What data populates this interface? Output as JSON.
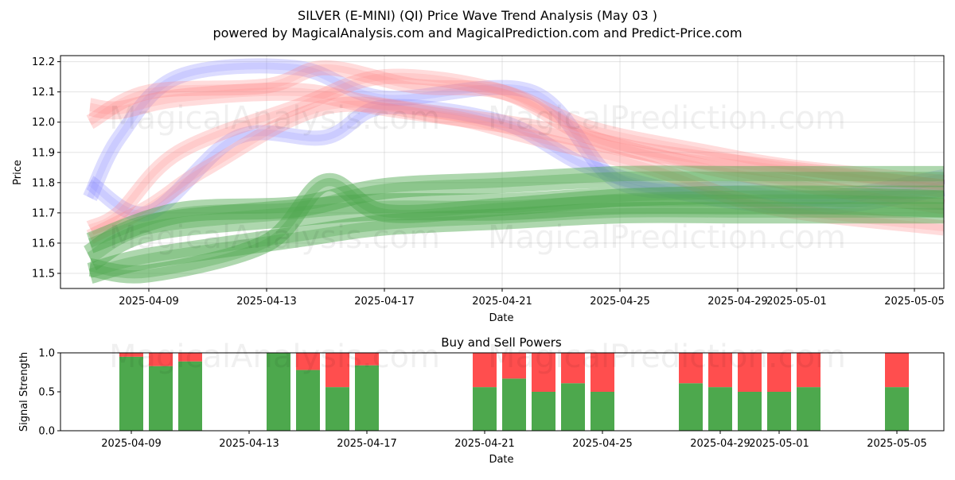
{
  "title_line1": "SILVER (E-MINI) (QI) Price Wave Trend Analysis (May 03 )",
  "title_line2": "powered by MagicalAnalysis.com and MagicalPrediction.com and Predict-Price.com",
  "watermarks": [
    "MagicalAnalysis.com",
    "MagicalPrediction.com"
  ],
  "colors": {
    "buy": "#3a9e3a",
    "sell": "#ff4444",
    "wave_red": "#ff8080",
    "wave_blue": "#8080ff",
    "wave_green": "#4ca64c"
  },
  "chart_data": [
    {
      "type": "area",
      "title": "",
      "xlabel": "Date",
      "ylabel": "Price",
      "xlim": [
        "2025-04-06",
        "2025-05-06"
      ],
      "ylim": [
        11.45,
        12.22
      ],
      "x_ticks": [
        "2025-04-09",
        "2025-04-13",
        "2025-04-17",
        "2025-04-21",
        "2025-04-25",
        "2025-04-29",
        "2025-05-01",
        "2025-05-05"
      ],
      "y_ticks": [
        "11.5",
        "11.6",
        "11.7",
        "11.8",
        "11.9",
        "12.0",
        "12.1",
        "12.2"
      ],
      "grid": true,
      "series": [
        {
          "color": "red",
          "x": [
            "2025-04-07",
            "2025-04-08",
            "2025-04-10",
            "2025-04-14",
            "2025-04-17",
            "2025-04-22",
            "2025-04-26",
            "2025-04-30",
            "2025-05-06"
          ],
          "values": [
            12.05,
            12.04,
            12.08,
            12.1,
            12.05,
            11.98,
            11.9,
            11.85,
            11.78
          ],
          "width": 0.06
        },
        {
          "color": "red",
          "x": [
            "2025-04-07",
            "2025-04-09",
            "2025-04-13",
            "2025-04-15",
            "2025-04-18",
            "2025-04-21",
            "2025-04-24",
            "2025-04-28",
            "2025-05-01",
            "2025-05-06"
          ],
          "values": [
            12.0,
            12.1,
            12.12,
            12.18,
            12.12,
            12.1,
            11.98,
            11.9,
            11.85,
            11.8
          ],
          "width": 0.05
        },
        {
          "color": "red",
          "x": [
            "2025-04-07",
            "2025-04-08",
            "2025-04-10",
            "2025-04-14",
            "2025-04-17",
            "2025-04-21",
            "2025-04-24",
            "2025-04-28",
            "2025-05-02",
            "2025-05-06"
          ],
          "values": [
            11.65,
            11.7,
            11.9,
            12.05,
            12.15,
            12.1,
            11.95,
            11.85,
            11.78,
            11.72
          ],
          "width": 0.05
        },
        {
          "color": "red",
          "x": [
            "2025-04-07",
            "2025-04-09",
            "2025-04-11",
            "2025-04-15",
            "2025-04-19",
            "2025-04-22",
            "2025-04-26",
            "2025-04-30",
            "2025-05-06"
          ],
          "values": [
            11.62,
            11.72,
            11.85,
            12.05,
            12.02,
            11.95,
            11.85,
            11.72,
            11.65
          ],
          "width": 0.05
        },
        {
          "color": "blue",
          "x": [
            "2025-04-07",
            "2025-04-08",
            "2025-04-10",
            "2025-04-14",
            "2025-04-17",
            "2025-04-22",
            "2025-04-25",
            "2025-04-29",
            "2025-05-02",
            "2025-05-06"
          ],
          "values": [
            11.75,
            11.95,
            12.15,
            12.18,
            12.08,
            12.1,
            11.8,
            11.78,
            11.75,
            11.82
          ],
          "width": 0.05
        },
        {
          "color": "blue",
          "x": [
            "2025-04-07",
            "2025-04-09",
            "2025-04-12",
            "2025-04-15",
            "2025-04-17",
            "2025-04-21",
            "2025-04-24",
            "2025-04-28",
            "2025-05-02",
            "2025-05-06"
          ],
          "values": [
            11.8,
            11.7,
            11.95,
            11.95,
            12.05,
            12.0,
            11.85,
            11.75,
            11.72,
            11.78
          ],
          "width": 0.05
        },
        {
          "color": "green",
          "x": [
            "2025-04-07",
            "2025-04-09",
            "2025-04-14",
            "2025-04-17",
            "2025-04-21",
            "2025-04-25",
            "2025-04-29",
            "2025-05-02",
            "2025-05-06"
          ],
          "values": [
            11.55,
            11.65,
            11.7,
            11.72,
            11.72,
            11.74,
            11.74,
            11.74,
            11.73
          ],
          "width": 0.09
        },
        {
          "color": "green",
          "x": [
            "2025-04-07",
            "2025-04-10",
            "2025-04-14",
            "2025-04-17",
            "2025-04-21",
            "2025-04-25",
            "2025-04-29",
            "2025-05-02",
            "2025-05-06"
          ],
          "values": [
            11.6,
            11.7,
            11.72,
            11.78,
            11.8,
            11.82,
            11.82,
            11.82,
            11.82
          ],
          "width": 0.07
        },
        {
          "color": "green",
          "x": [
            "2025-04-07",
            "2025-04-09",
            "2025-04-14",
            "2025-04-17",
            "2025-04-21",
            "2025-04-25",
            "2025-04-29",
            "2025-05-02",
            "2025-05-06"
          ],
          "values": [
            11.5,
            11.55,
            11.62,
            11.66,
            11.68,
            11.7,
            11.7,
            11.7,
            11.7
          ],
          "width": 0.07
        },
        {
          "color": "green",
          "x": [
            "2025-04-07",
            "2025-04-09",
            "2025-04-13",
            "2025-04-15",
            "2025-04-17",
            "2025-04-21",
            "2025-04-25",
            "2025-04-29",
            "2025-05-02",
            "2025-05-06"
          ],
          "values": [
            11.52,
            11.5,
            11.6,
            11.8,
            11.7,
            11.72,
            11.75,
            11.76,
            11.76,
            11.76
          ],
          "width": 0.06
        }
      ]
    },
    {
      "type": "bar",
      "title": "Buy and Sell Powers",
      "xlabel": "Date",
      "ylabel": "Signal Strength",
      "ylim": [
        0,
        1.0
      ],
      "y_ticks": [
        "0.0",
        "0.5",
        "1.0"
      ],
      "x_ticks": [
        "2025-04-09",
        "2025-04-13",
        "2025-04-17",
        "2025-04-21",
        "2025-04-25",
        "2025-04-29",
        "2025-05-01",
        "2025-05-05"
      ],
      "categories": [
        "2025-04-09",
        "2025-04-10",
        "2025-04-11",
        "2025-04-14",
        "2025-04-15",
        "2025-04-16",
        "2025-04-17",
        "2025-04-21",
        "2025-04-22",
        "2025-04-23",
        "2025-04-24",
        "2025-04-25",
        "2025-04-28",
        "2025-04-29",
        "2025-04-30",
        "2025-05-01",
        "2025-05-02",
        "2025-05-05"
      ],
      "series": [
        {
          "name": "Buy",
          "values": [
            0.95,
            0.83,
            0.89,
            1.0,
            0.78,
            0.56,
            0.84,
            0.56,
            0.67,
            0.5,
            0.61,
            0.5,
            0.61,
            0.56,
            0.5,
            0.5,
            0.56,
            0.56
          ]
        },
        {
          "name": "Sell",
          "values": [
            0.05,
            0.17,
            0.11,
            0.0,
            0.22,
            0.44,
            0.16,
            0.44,
            0.33,
            0.5,
            0.39,
            0.5,
            0.39,
            0.44,
            0.5,
            0.5,
            0.44,
            0.44
          ]
        }
      ]
    }
  ]
}
